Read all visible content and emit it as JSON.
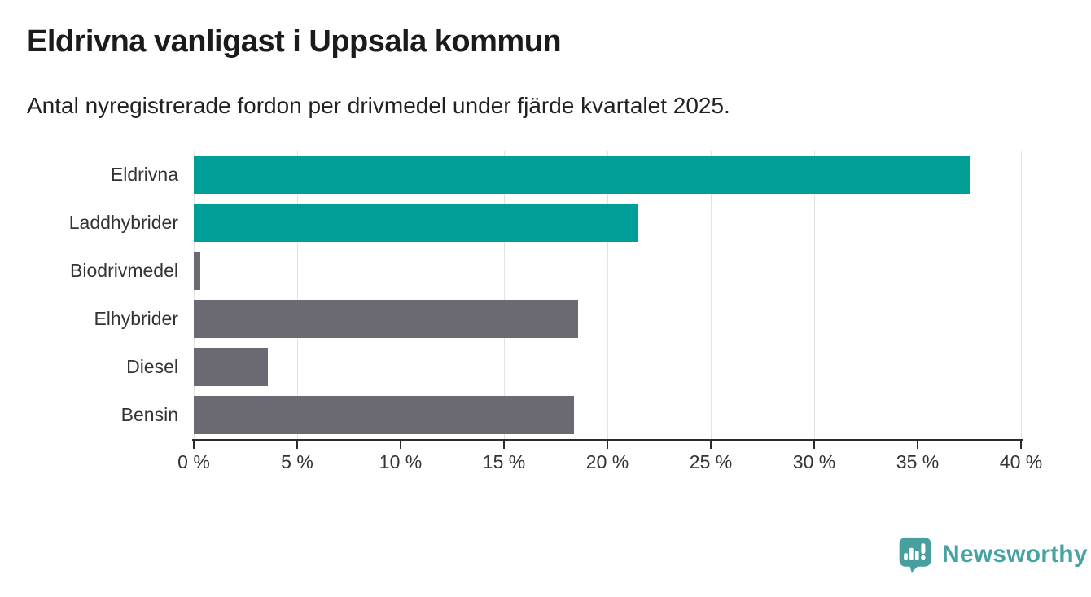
{
  "header": {
    "title": "Eldrivna vanligast i Uppsala kommun",
    "subtitle": "Antal nyregistrerade fordon per drivmedel under fjärde kvartalet 2025."
  },
  "chart_data": {
    "type": "bar",
    "orientation": "horizontal",
    "title": "Eldrivna vanligast i Uppsala kommun",
    "subtitle": "Antal nyregistrerade fordon per drivmedel under fjärde kvartalet 2025.",
    "categories": [
      "Eldrivna",
      "Laddhybrider",
      "Biodrivmedel",
      "Elhybrider",
      "Diesel",
      "Bensin"
    ],
    "values": [
      37.5,
      21.5,
      0.3,
      18.6,
      3.6,
      18.4
    ],
    "unit": "%",
    "bar_colors": [
      "#009E96",
      "#009E96",
      "#6B6A72",
      "#6B6A72",
      "#6B6A72",
      "#6B6A72"
    ],
    "highlight_color": "#009E96",
    "default_color": "#6B6A72",
    "xlim": [
      0,
      40
    ],
    "x_ticks": [
      0,
      5,
      10,
      15,
      20,
      25,
      30,
      35,
      40
    ],
    "x_tick_labels": [
      "0 %",
      "5 %",
      "10 %",
      "15 %",
      "20 %",
      "25 %",
      "30 %",
      "35 %",
      "40 %"
    ],
    "xlabel": "",
    "ylabel": "",
    "grid": "vertical",
    "gridline_color": "#E2E2E2",
    "axis_color": "#2B2B2B",
    "legend": "none"
  },
  "footer": {
    "brand": "Newsworthy",
    "logo_icon": "newsworthy-speech-bubble-bar-chart-icon",
    "brand_color": "#45A3A1"
  }
}
